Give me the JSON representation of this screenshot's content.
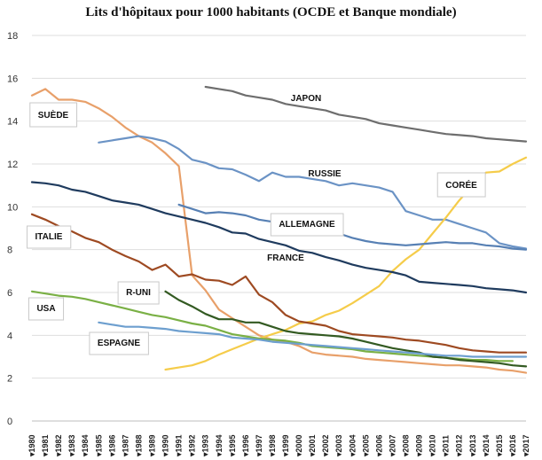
{
  "chart_data": {
    "type": "line",
    "title": "Lits d'hôpitaux pour 1000 habitants (OCDE et Banque mondiale)",
    "ylim": [
      0,
      18
    ],
    "yticks": [
      0,
      2,
      4,
      6,
      8,
      10,
      12,
      14,
      16,
      18
    ],
    "x": [
      1980,
      1981,
      1982,
      1983,
      1984,
      1985,
      1986,
      1987,
      1988,
      1989,
      1990,
      1991,
      1992,
      1993,
      1994,
      1995,
      1996,
      1997,
      1998,
      1999,
      2000,
      2001,
      2002,
      2003,
      2004,
      2005,
      2006,
      2007,
      2008,
      2009,
      2010,
      2011,
      2012,
      2013,
      2014,
      2015,
      2016,
      2017
    ],
    "grid": true,
    "legend": "none",
    "series": [
      {
        "name": "JAPON",
        "color": "#6e6e6e",
        "boxed": false,
        "values": [
          null,
          null,
          null,
          null,
          null,
          null,
          null,
          null,
          null,
          null,
          null,
          null,
          null,
          15.6,
          15.5,
          15.4,
          15.2,
          15.1,
          15.0,
          14.8,
          14.7,
          14.6,
          14.5,
          14.3,
          14.2,
          14.1,
          13.9,
          13.8,
          13.7,
          13.6,
          13.5,
          13.4,
          13.35,
          13.3,
          13.2,
          13.15,
          13.1,
          13.05
        ]
      },
      {
        "name": "SUÈDE",
        "color": "#e8a06a",
        "boxed": true,
        "values": [
          15.2,
          15.5,
          15.0,
          15.0,
          14.9,
          14.6,
          14.2,
          13.7,
          13.3,
          13.0,
          12.5,
          11.9,
          6.8,
          6.1,
          5.2,
          4.8,
          4.4,
          4.0,
          3.8,
          3.7,
          3.5,
          3.2,
          3.1,
          3.05,
          3.0,
          2.9,
          2.85,
          2.8,
          2.75,
          2.7,
          2.65,
          2.6,
          2.6,
          2.55,
          2.5,
          2.4,
          2.35,
          2.25
        ]
      },
      {
        "name": "RUSSIE",
        "color": "#6b93c5",
        "boxed": false,
        "values": [
          null,
          null,
          null,
          null,
          null,
          13.0,
          13.1,
          13.2,
          13.3,
          13.2,
          13.05,
          12.7,
          12.2,
          12.05,
          11.8,
          11.75,
          11.5,
          11.2,
          11.6,
          11.4,
          11.4,
          11.3,
          11.2,
          11.0,
          11.1,
          11.0,
          10.9,
          10.7,
          9.8,
          9.6,
          9.4,
          9.4,
          9.2,
          9.0,
          8.8,
          8.3,
          8.15,
          8.05
        ]
      },
      {
        "name": "CORÉE",
        "color": "#f5cc4a",
        "boxed": true,
        "values": [
          null,
          null,
          null,
          null,
          null,
          null,
          null,
          null,
          null,
          null,
          2.4,
          2.5,
          2.6,
          2.8,
          3.1,
          3.35,
          3.6,
          3.85,
          4.05,
          4.25,
          4.55,
          4.65,
          4.95,
          5.15,
          5.5,
          5.9,
          6.3,
          7.0,
          7.55,
          8.0,
          8.75,
          9.5,
          10.3,
          11.0,
          11.6,
          11.65,
          12.0,
          12.3
        ]
      },
      {
        "name": "ALLEMAGNE",
        "color": "#1f3b5e",
        "boxed": true,
        "values": [
          11.15,
          11.1,
          11.0,
          10.8,
          10.7,
          10.5,
          10.3,
          10.2,
          10.1,
          9.9,
          9.7,
          9.55,
          9.4,
          9.25,
          9.05,
          8.8,
          8.75,
          8.5,
          8.35,
          8.2,
          7.95,
          7.85,
          7.65,
          7.5,
          7.3,
          7.15,
          7.05,
          6.95,
          6.8,
          6.5,
          6.45,
          6.4,
          6.35,
          6.3,
          6.2,
          6.15,
          6.1,
          6.0
        ]
      },
      {
        "name": "FRANCE",
        "color": "#5780b4",
        "boxed": false,
        "values": [
          null,
          null,
          null,
          null,
          null,
          null,
          null,
          null,
          null,
          null,
          null,
          10.1,
          9.9,
          9.7,
          9.75,
          9.7,
          9.6,
          9.4,
          9.3,
          9.2,
          9.05,
          8.95,
          8.85,
          8.75,
          8.55,
          8.4,
          8.3,
          8.25,
          8.2,
          8.25,
          8.3,
          8.35,
          8.3,
          8.3,
          8.2,
          8.15,
          8.05,
          8.0
        ]
      },
      {
        "name": "ITALIE",
        "color": "#9e4a22",
        "boxed": true,
        "values": [
          9.65,
          9.4,
          9.1,
          8.85,
          8.55,
          8.35,
          8.0,
          7.7,
          7.45,
          7.05,
          7.3,
          6.75,
          6.85,
          6.6,
          6.55,
          6.35,
          6.75,
          5.9,
          5.55,
          4.95,
          4.65,
          4.55,
          4.45,
          4.2,
          4.05,
          4.0,
          3.95,
          3.9,
          3.8,
          3.75,
          3.65,
          3.55,
          3.4,
          3.3,
          3.25,
          3.2,
          3.2,
          3.2
        ]
      },
      {
        "name": "USA",
        "color": "#7ab045",
        "boxed": true,
        "values": [
          6.05,
          5.95,
          5.85,
          5.8,
          5.7,
          5.55,
          5.4,
          5.25,
          5.1,
          4.95,
          4.85,
          4.7,
          4.55,
          4.45,
          4.25,
          4.05,
          3.95,
          3.85,
          3.8,
          3.75,
          3.65,
          3.5,
          3.45,
          3.4,
          3.35,
          3.25,
          3.2,
          3.15,
          3.1,
          3.05,
          3.0,
          2.95,
          2.9,
          2.85,
          2.85,
          2.8,
          2.8,
          null
        ]
      },
      {
        "name": "R-UNI",
        "color": "#335a22",
        "boxed": true,
        "values": [
          null,
          null,
          null,
          null,
          null,
          null,
          null,
          null,
          null,
          null,
          6.05,
          5.65,
          5.35,
          5.0,
          4.75,
          4.75,
          4.6,
          4.6,
          4.4,
          4.2,
          4.1,
          4.05,
          4.0,
          3.95,
          3.85,
          3.7,
          3.55,
          3.4,
          3.3,
          3.2,
          3.0,
          2.95,
          2.85,
          2.8,
          2.75,
          2.7,
          2.6,
          2.55
        ]
      },
      {
        "name": "ESPAGNE",
        "color": "#6d9fcf",
        "boxed": true,
        "values": [
          null,
          null,
          null,
          null,
          null,
          4.6,
          4.5,
          4.4,
          4.4,
          4.35,
          4.3,
          4.2,
          4.15,
          4.1,
          4.05,
          3.9,
          3.85,
          3.8,
          3.7,
          3.65,
          3.6,
          3.55,
          3.5,
          3.45,
          3.4,
          3.35,
          3.3,
          3.25,
          3.2,
          3.15,
          3.1,
          3.05,
          3.05,
          3.0,
          3.0,
          3.0,
          3.0,
          3.0
        ]
      }
    ]
  }
}
